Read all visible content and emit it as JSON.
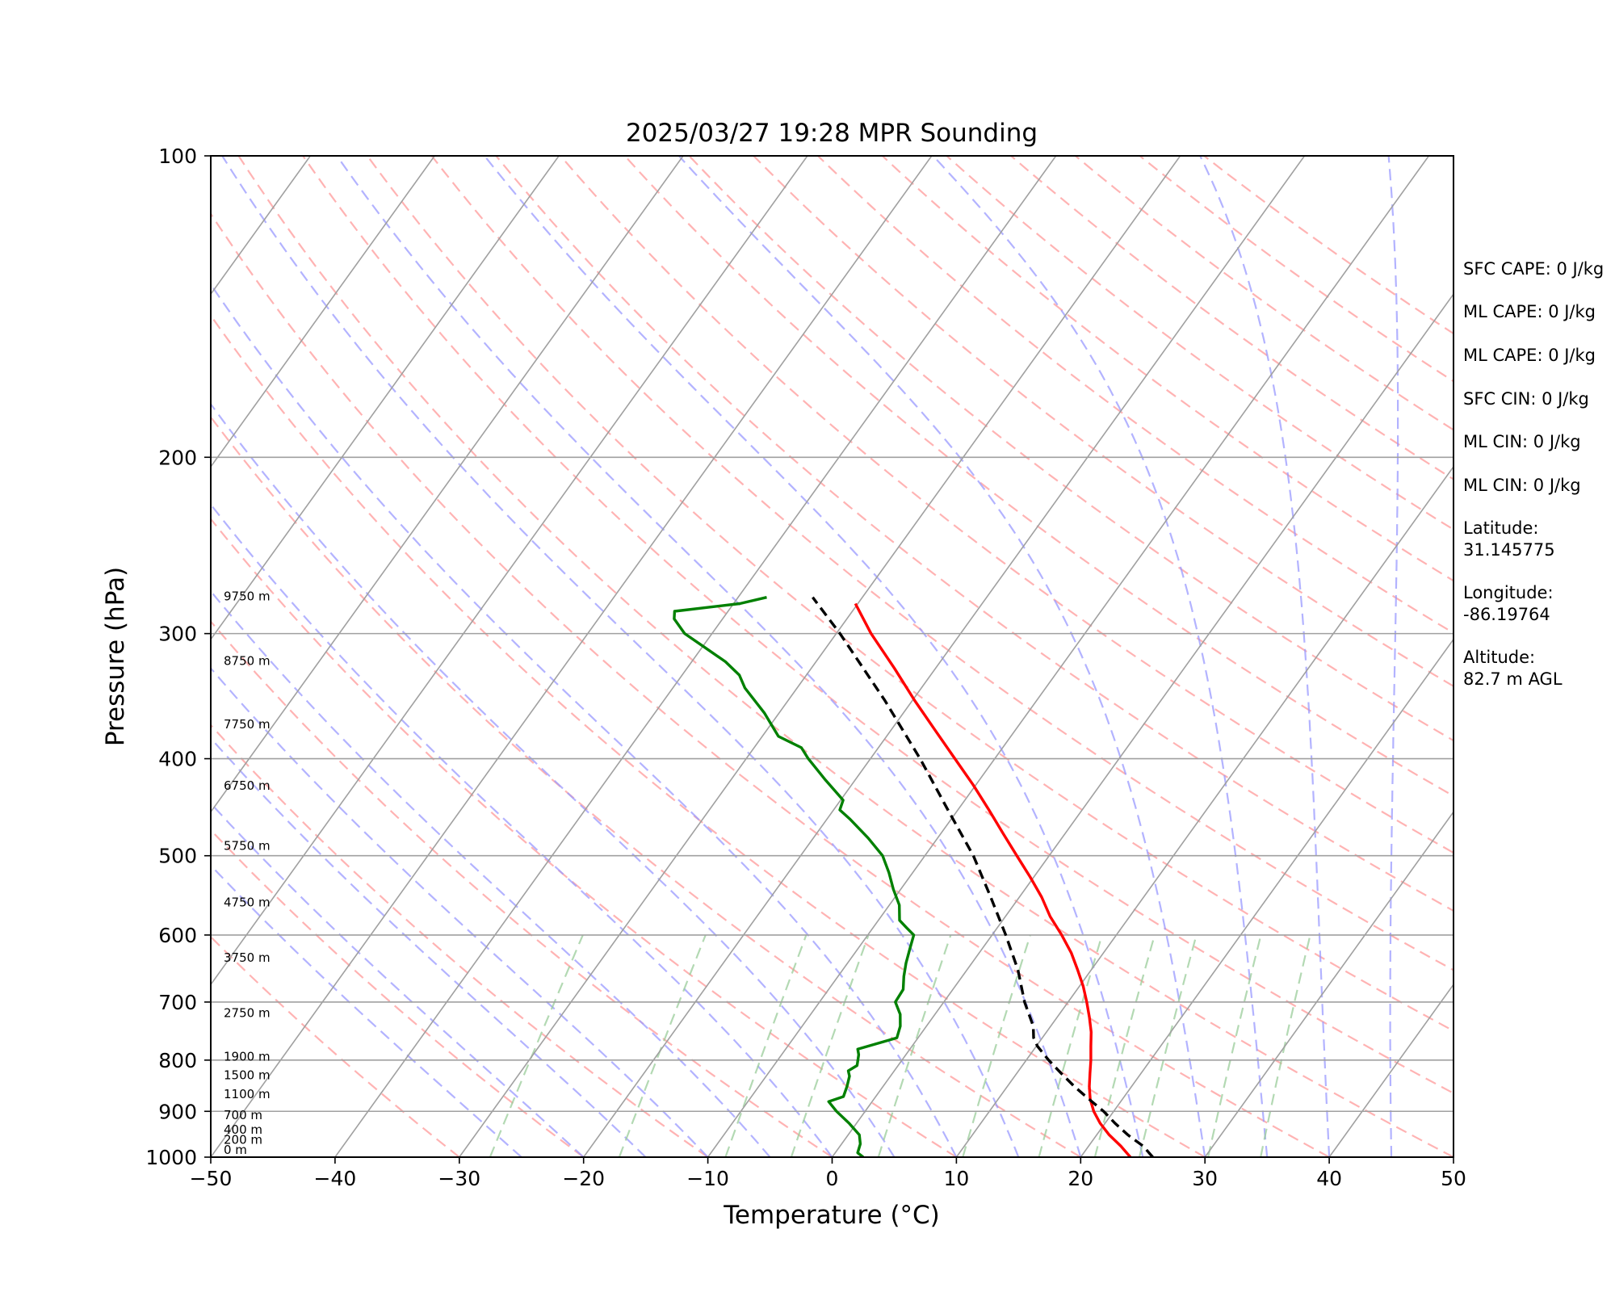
{
  "chart_data": {
    "type": "line",
    "title": "2025/03/27 19:28 MPR Sounding",
    "xlabel": "Temperature (°C)",
    "ylabel": "Pressure (hPa)",
    "xlim": [
      -50,
      50
    ],
    "ylim": [
      1000,
      100
    ],
    "y_scale": "log",
    "skew": "skew-T log-p",
    "x_ticks": [
      "−50",
      "−40",
      "−30",
      "−20",
      "−10",
      "0",
      "10",
      "20",
      "30",
      "40",
      "50"
    ],
    "y_ticks": [
      "100",
      "200",
      "300",
      "400",
      "500",
      "600",
      "700",
      "800",
      "900",
      "1000"
    ],
    "grid": true,
    "height_labels": [
      {
        "p": 1000,
        "label": "0 m"
      },
      {
        "p": 977,
        "label": "200 m"
      },
      {
        "p": 955,
        "label": "400 m"
      },
      {
        "p": 923,
        "label": "700 m"
      },
      {
        "p": 880,
        "label": "1100 m"
      },
      {
        "p": 842,
        "label": "1500 m"
      },
      {
        "p": 807,
        "label": "1900 m"
      },
      {
        "p": 730,
        "label": "2750 m"
      },
      {
        "p": 643,
        "label": "3750 m"
      },
      {
        "p": 566,
        "label": "4750 m"
      },
      {
        "p": 497,
        "label": "5750 m"
      },
      {
        "p": 433,
        "label": "6750 m"
      },
      {
        "p": 376,
        "label": "7750 m"
      },
      {
        "p": 325,
        "label": "8750 m"
      },
      {
        "p": 280,
        "label": "9750 m"
      }
    ],
    "series": [
      {
        "role": "temperature",
        "color": "#ff0000",
        "points": [
          [
            1000,
            24.0
          ],
          [
            975,
            22.6
          ],
          [
            950,
            21.0
          ],
          [
            925,
            19.6
          ],
          [
            900,
            18.4
          ],
          [
            875,
            17.4
          ],
          [
            850,
            16.6
          ],
          [
            825,
            15.9
          ],
          [
            800,
            15.2
          ],
          [
            775,
            14.4
          ],
          [
            750,
            13.6
          ],
          [
            725,
            12.6
          ],
          [
            700,
            11.5
          ],
          [
            675,
            10.3
          ],
          [
            650,
            8.9
          ],
          [
            625,
            7.4
          ],
          [
            600,
            5.6
          ],
          [
            575,
            3.6
          ],
          [
            550,
            1.8
          ],
          [
            525,
            -0.3
          ],
          [
            500,
            -2.6
          ],
          [
            475,
            -5.0
          ],
          [
            450,
            -7.5
          ],
          [
            425,
            -10.2
          ],
          [
            400,
            -13.2
          ],
          [
            375,
            -16.4
          ],
          [
            350,
            -19.8
          ],
          [
            325,
            -23.3
          ],
          [
            300,
            -27.2
          ],
          [
            280,
            -30.2
          ]
        ]
      },
      {
        "role": "dewpoint",
        "color": "#008000",
        "points": [
          [
            1000,
            2.5
          ],
          [
            990,
            1.8
          ],
          [
            970,
            1.5
          ],
          [
            950,
            0.9
          ],
          [
            925,
            -0.6
          ],
          [
            900,
            -2.3
          ],
          [
            880,
            -3.5
          ],
          [
            870,
            -2.6
          ],
          [
            850,
            -2.9
          ],
          [
            830,
            -3.3
          ],
          [
            820,
            -3.7
          ],
          [
            810,
            -3.3
          ],
          [
            790,
            -3.8
          ],
          [
            780,
            -4.2
          ],
          [
            760,
            -1.7
          ],
          [
            740,
            -2.1
          ],
          [
            720,
            -2.8
          ],
          [
            700,
            -3.9
          ],
          [
            680,
            -4.0
          ],
          [
            660,
            -4.7
          ],
          [
            640,
            -5.3
          ],
          [
            620,
            -5.8
          ],
          [
            600,
            -6.3
          ],
          [
            590,
            -7.3
          ],
          [
            580,
            -8.3
          ],
          [
            560,
            -9.2
          ],
          [
            540,
            -10.6
          ],
          [
            520,
            -11.9
          ],
          [
            500,
            -13.4
          ],
          [
            480,
            -15.6
          ],
          [
            460,
            -18.1
          ],
          [
            450,
            -19.5
          ],
          [
            440,
            -19.8
          ],
          [
            420,
            -22.4
          ],
          [
            400,
            -25.0
          ],
          [
            390,
            -26.2
          ],
          [
            380,
            -28.7
          ],
          [
            360,
            -31.2
          ],
          [
            340,
            -34.2
          ],
          [
            330,
            -35.4
          ],
          [
            320,
            -37.3
          ],
          [
            310,
            -39.7
          ],
          [
            300,
            -42.2
          ],
          [
            290,
            -43.9
          ],
          [
            285,
            -44.3
          ],
          [
            280,
            -39.5
          ],
          [
            276,
            -37.7
          ]
        ]
      },
      {
        "role": "parcel",
        "color": "#000000",
        "style": "dashed",
        "points": [
          [
            1000,
            25.8
          ],
          [
            975,
            24.4
          ],
          [
            950,
            22.5
          ],
          [
            925,
            20.8
          ],
          [
            900,
            19.2
          ],
          [
            875,
            17.3
          ],
          [
            850,
            15.4
          ],
          [
            825,
            13.6
          ],
          [
            800,
            11.8
          ],
          [
            775,
            10.1
          ],
          [
            760,
            9.3
          ],
          [
            740,
            8.6
          ],
          [
            700,
            6.5
          ],
          [
            650,
            4.1
          ],
          [
            600,
            1.1
          ],
          [
            550,
            -2.3
          ],
          [
            500,
            -6.1
          ],
          [
            450,
            -10.8
          ],
          [
            400,
            -16.0
          ],
          [
            350,
            -22.2
          ],
          [
            300,
            -29.7
          ],
          [
            276,
            -34.0
          ]
        ]
      }
    ]
  },
  "info_panel": {
    "sfc_cape": "SFC CAPE: 0 J/kg",
    "ml_cape_1": "ML CAPE: 0 J/kg",
    "ml_cape_2": "ML CAPE: 0 J/kg",
    "sfc_cin": "SFC CIN: 0 J/kg",
    "ml_cin_1": "ML CIN: 0 J/kg",
    "ml_cin_2": "ML CIN: 0 J/kg",
    "latitude_label": "Latitude:",
    "latitude_value": "31.145775",
    "longitude_label": "Longitude:",
    "longitude_value": "-86.19764",
    "altitude_label": "Altitude:",
    "altitude_value": "82.7 m AGL"
  },
  "colors": {
    "temperature": "#ff0000",
    "dewpoint": "#008000",
    "parcel": "#000000",
    "dry_adiabats": "#ff9999",
    "moist_adiabats": "#9999ff",
    "mixing_ratio": "#99cc99",
    "isotherms": "#a0a0a0",
    "isobars": "#a0a0a0"
  }
}
